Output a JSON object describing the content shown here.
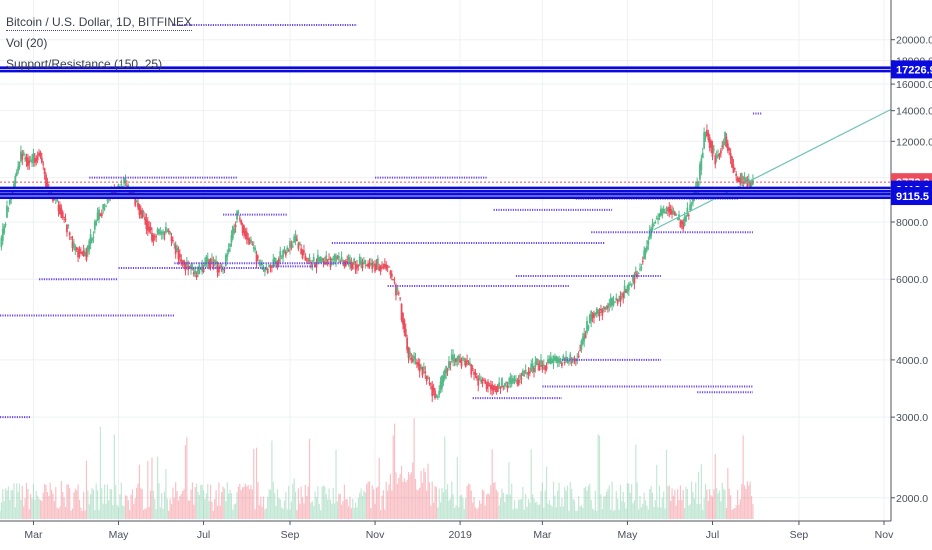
{
  "chart_data": {
    "type": "candlestick",
    "legend": {
      "title": "Bitcoin / U.S. Dollar, 1D, BITFINEX",
      "volume": "Vol (20)",
      "indicator": "Support/Resistance (150, 25)"
    },
    "y_axis": {
      "scale": "log",
      "range": [
        2600,
        21500
      ],
      "ticks": [
        "20000.0",
        "18000.0",
        "16000.0",
        "14000.0",
        "12000.0",
        "10000.0",
        "8000.0",
        "6000.0",
        "4000.0",
        "3000.0",
        "2000.0"
      ],
      "tick_values": [
        20000,
        18000,
        16000,
        14000,
        12000,
        10000,
        8000,
        6000,
        4000,
        3000,
        2000
      ]
    },
    "x_axis": {
      "labels": [
        "Mar",
        "May",
        "Jul",
        "Sep",
        "Nov",
        "2019",
        "Mar",
        "May",
        "Jul",
        "Sep",
        "Nov"
      ],
      "dates": [
        "2018-03-01",
        "2018-05-01",
        "2018-07-01",
        "2018-09-01",
        "2018-11-01",
        "2019-01-01",
        "2019-03-01",
        "2019-05-01",
        "2019-07-01",
        "2019-09-01",
        "2019-11-01"
      ],
      "range": [
        "2018-02-05",
        "2019-12-01"
      ]
    },
    "price_labels": [
      {
        "text": "17226.9",
        "value": 17226.9,
        "style": "blue"
      },
      {
        "text": "9773.2",
        "value": 9773.2,
        "style": "red"
      },
      {
        "text": "9412.0",
        "value": 9412.0,
        "style": "blue"
      },
      {
        "text": "9115.5",
        "value": 9115.5,
        "style": "blue"
      }
    ],
    "horizontal_levels": [
      {
        "value": 17226.9,
        "kind": "resistance"
      },
      {
        "value": 9412.0,
        "kind": "support"
      },
      {
        "value": 9115.5,
        "kind": "support"
      }
    ],
    "last_price_line": 9773.2,
    "trendline": {
      "from": [
        "2019-05-20",
        7700
      ],
      "to": [
        "2019-12-01",
        15400
      ]
    },
    "price_path": [
      [
        "2018-02-05",
        7000
      ],
      [
        "2018-02-10",
        8500
      ],
      [
        "2018-02-20",
        11200
      ],
      [
        "2018-02-27",
        10800
      ],
      [
        "2018-03-05",
        11400
      ],
      [
        "2018-03-12",
        9200
      ],
      [
        "2018-03-20",
        8600
      ],
      [
        "2018-03-30",
        7000
      ],
      [
        "2018-04-08",
        6800
      ],
      [
        "2018-04-15",
        8000
      ],
      [
        "2018-04-25",
        9300
      ],
      [
        "2018-05-05",
        9700
      ],
      [
        "2018-05-15",
        8700
      ],
      [
        "2018-05-25",
        7500
      ],
      [
        "2018-06-05",
        7600
      ],
      [
        "2018-06-15",
        6600
      ],
      [
        "2018-06-25",
        6100
      ],
      [
        "2018-07-05",
        6600
      ],
      [
        "2018-07-15",
        6300
      ],
      [
        "2018-07-25",
        8300
      ],
      [
        "2018-08-05",
        7000
      ],
      [
        "2018-08-13",
        6200
      ],
      [
        "2018-08-25",
        6700
      ],
      [
        "2018-09-05",
        7300
      ],
      [
        "2018-09-15",
        6500
      ],
      [
        "2018-09-25",
        6600
      ],
      [
        "2018-10-05",
        6600
      ],
      [
        "2018-10-15",
        6500
      ],
      [
        "2018-10-25",
        6500
      ],
      [
        "2018-11-10",
        6400
      ],
      [
        "2018-11-18",
        5500
      ],
      [
        "2018-11-25",
        4100
      ],
      [
        "2018-12-05",
        3800
      ],
      [
        "2018-12-15",
        3300
      ],
      [
        "2018-12-25",
        4000
      ],
      [
        "2019-01-05",
        4000
      ],
      [
        "2019-01-15",
        3600
      ],
      [
        "2019-01-28",
        3500
      ],
      [
        "2019-02-10",
        3600
      ],
      [
        "2019-02-25",
        3900
      ],
      [
        "2019-03-10",
        3950
      ],
      [
        "2019-03-25",
        4000
      ],
      [
        "2019-04-05",
        5000
      ],
      [
        "2019-04-20",
        5300
      ],
      [
        "2019-05-01",
        5700
      ],
      [
        "2019-05-10",
        6400
      ],
      [
        "2019-05-20",
        8000
      ],
      [
        "2019-05-30",
        8600
      ],
      [
        "2019-06-10",
        7900
      ],
      [
        "2019-06-20",
        9500
      ],
      [
        "2019-06-26",
        12800
      ],
      [
        "2019-07-03",
        11000
      ],
      [
        "2019-07-10",
        12200
      ],
      [
        "2019-07-18",
        10000
      ],
      [
        "2019-07-25",
        9800
      ],
      [
        "2019-07-30",
        9600
      ]
    ],
    "volume_level_relative": 0.35,
    "colors": {
      "up": "#53b987",
      "down": "#eb4d5c",
      "level": "#0a0adc",
      "sr_dotted": "#6d48e6",
      "trendline": "#6ec3b4",
      "last_price": "#eb4d5c",
      "axis_text": "#4a4f5c",
      "grid": "#eef0f3"
    }
  }
}
